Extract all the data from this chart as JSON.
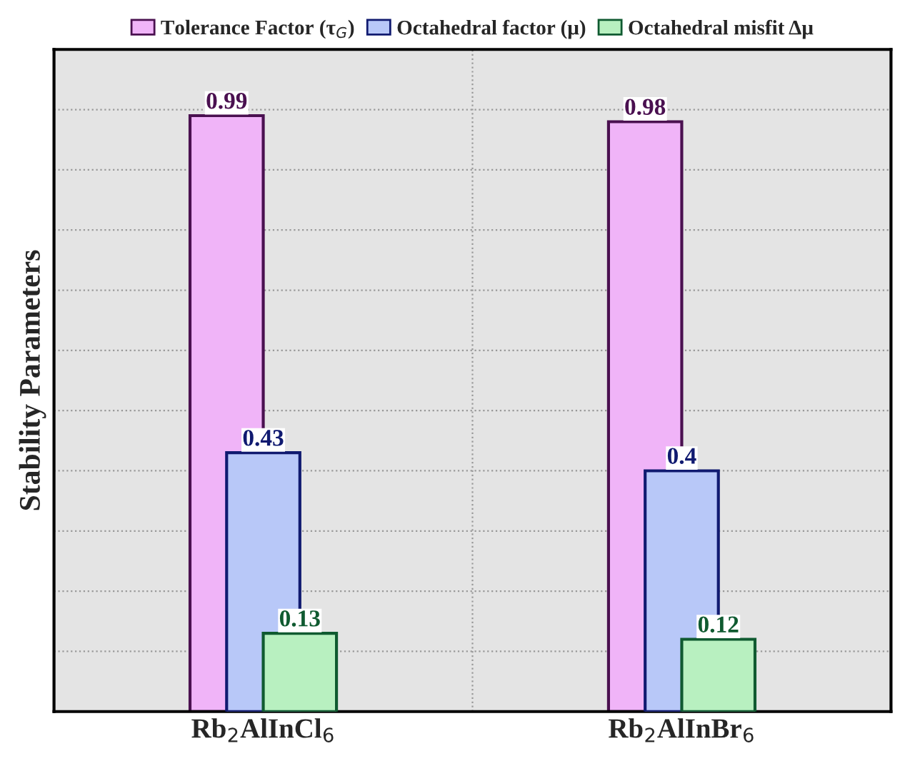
{
  "chart_data": {
    "type": "bar",
    "ylabel": "Stability Parameters",
    "categories": [
      "Rb$_{2}$AlInCl$_{6}$",
      "Rb$_{2}$AlInBr$_{6}$"
    ],
    "series": [
      {
        "name": "Tolerance Factor (τ$_{G}$)",
        "color": "#f0b4f8",
        "values": [
          0.99,
          0.98
        ]
      },
      {
        "name": "Octahedral factor (μ)",
        "color": "#b8c8f8",
        "values": [
          0.43,
          0.4
        ]
      },
      {
        "name": "Octahedral misfit Δμ",
        "color": "#b8f0c0",
        "values": [
          0.13,
          0.12
        ]
      }
    ],
    "ylim": [
      0,
      1.1
    ],
    "yticks": [
      {
        "value": 0.1,
        "label": null
      },
      {
        "value": 0.2,
        "label": null
      },
      {
        "value": 0.3,
        "label": null
      },
      {
        "value": 0.4,
        "label": null
      },
      {
        "value": 0.5,
        "label": null
      },
      {
        "value": 0.6,
        "label": null
      },
      {
        "value": 0.7,
        "label": null
      },
      {
        "value": 0.8,
        "label": null
      },
      {
        "value": 0.9,
        "label": null
      },
      {
        "value": 1.0,
        "label": null
      }
    ],
    "tick_labels": "x",
    "grid": "y",
    "legend": "top",
    "data_labels": true
  }
}
